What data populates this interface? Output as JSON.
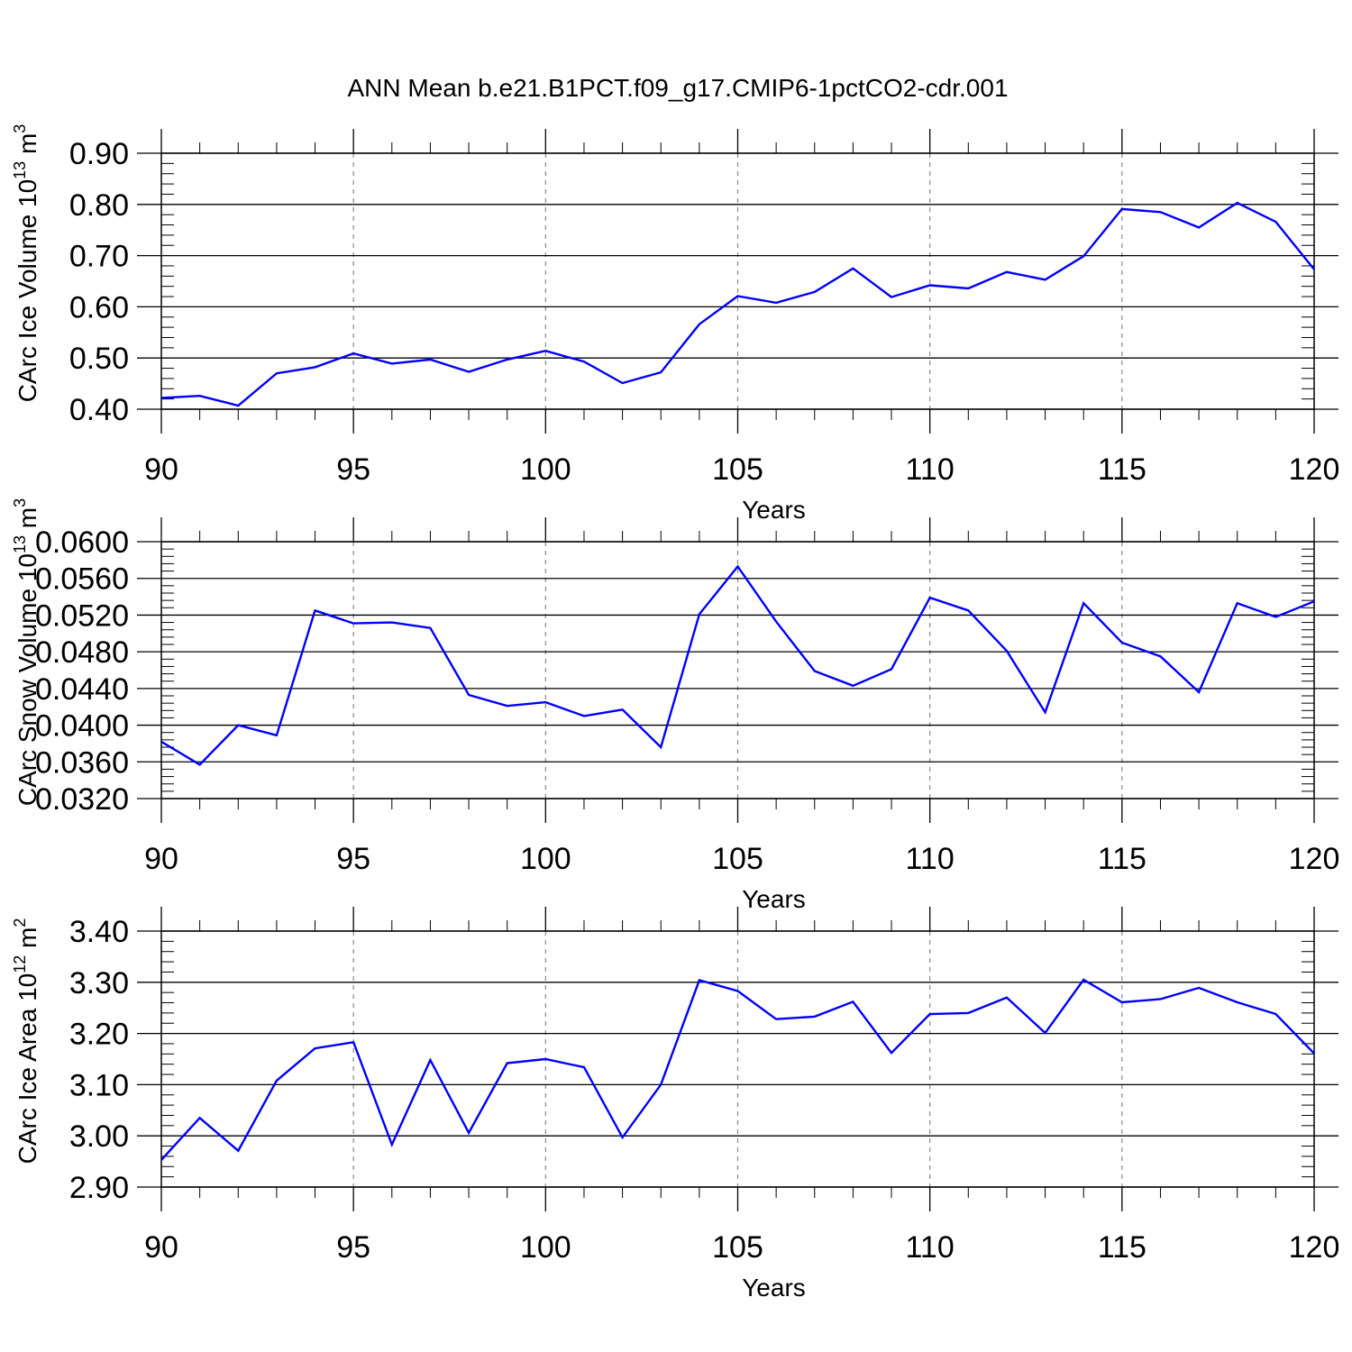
{
  "title": "ANN Mean b.e21.B1PCT.f09_g17.CMIP6-1pctCO2-cdr.001",
  "line_color": "#0000ff",
  "chart_data": [
    {
      "type": "line",
      "ylabel": "CArc Ice Volume 10",
      "ylabel_exp": "13",
      "ylabel_unit": " m",
      "ylabel_unit_exp": "3",
      "xlabel": "Years",
      "xlim": [
        90,
        120
      ],
      "ylim": [
        0.4,
        0.9
      ],
      "xticks": [
        "90",
        "95",
        "100",
        "105",
        "110",
        "115",
        "120"
      ],
      "yticks": [
        "0.40",
        "0.50",
        "0.60",
        "0.70",
        "0.80",
        "0.90"
      ],
      "grid": "vertical dashed",
      "x": [
        90,
        91,
        92,
        93,
        94,
        95,
        96,
        97,
        98,
        99,
        100,
        101,
        102,
        103,
        104,
        105,
        106,
        107,
        108,
        109,
        110,
        111,
        112,
        113,
        114,
        115,
        116,
        117,
        118,
        119,
        120
      ],
      "y": [
        0.422,
        0.426,
        0.407,
        0.47,
        0.482,
        0.509,
        0.489,
        0.497,
        0.473,
        0.497,
        0.514,
        0.493,
        0.451,
        0.472,
        0.566,
        0.621,
        0.608,
        0.629,
        0.675,
        0.619,
        0.642,
        0.636,
        0.668,
        0.653,
        0.699,
        0.791,
        0.785,
        0.755,
        0.803,
        0.766,
        0.673
      ]
    },
    {
      "type": "line",
      "ylabel": "CArc Snow Volume 10",
      "ylabel_exp": "13",
      "ylabel_unit": " m",
      "ylabel_unit_exp": "3",
      "xlabel": "Years",
      "xlim": [
        90,
        120
      ],
      "ylim": [
        0.032,
        0.06
      ],
      "xticks": [
        "90",
        "95",
        "100",
        "105",
        "110",
        "115",
        "120"
      ],
      "yticks": [
        "0.0320",
        "0.0360",
        "0.0400",
        "0.0440",
        "0.0480",
        "0.0520",
        "0.0560",
        "0.0600"
      ],
      "grid": "vertical dashed",
      "x": [
        90,
        91,
        92,
        93,
        94,
        95,
        96,
        97,
        98,
        99,
        100,
        101,
        102,
        103,
        104,
        105,
        106,
        107,
        108,
        109,
        110,
        111,
        112,
        113,
        114,
        115,
        116,
        117,
        118,
        119,
        120
      ],
      "y": [
        0.0382,
        0.0357,
        0.04,
        0.0389,
        0.0525,
        0.0511,
        0.0512,
        0.0506,
        0.0433,
        0.0421,
        0.0425,
        0.041,
        0.0417,
        0.0376,
        0.0521,
        0.0573,
        0.0513,
        0.0459,
        0.0443,
        0.0461,
        0.0539,
        0.0525,
        0.0481,
        0.0414,
        0.0533,
        0.049,
        0.0475,
        0.0436,
        0.0533,
        0.0518,
        0.0535
      ]
    },
    {
      "type": "line",
      "ylabel": "CArc Ice Area 10",
      "ylabel_exp": "12",
      "ylabel_unit": " m",
      "ylabel_unit_exp": "2",
      "xlabel": "Years",
      "xlim": [
        90,
        120
      ],
      "ylim": [
        2.9,
        3.4
      ],
      "xticks": [
        "90",
        "95",
        "100",
        "105",
        "110",
        "115",
        "120"
      ],
      "yticks": [
        "2.90",
        "3.00",
        "3.10",
        "3.20",
        "3.30",
        "3.40"
      ],
      "grid": "vertical dashed",
      "x": [
        90,
        91,
        92,
        93,
        94,
        95,
        96,
        97,
        98,
        99,
        100,
        101,
        102,
        103,
        104,
        105,
        106,
        107,
        108,
        109,
        110,
        111,
        112,
        113,
        114,
        115,
        116,
        117,
        118,
        119,
        120
      ],
      "y": [
        2.953,
        3.035,
        2.971,
        3.108,
        3.171,
        3.183,
        2.983,
        3.148,
        3.006,
        3.142,
        3.15,
        3.134,
        2.997,
        3.1,
        3.304,
        3.283,
        3.228,
        3.233,
        3.262,
        3.162,
        3.238,
        3.24,
        3.27,
        3.201,
        3.305,
        3.261,
        3.267,
        3.289,
        3.261,
        3.238,
        3.161
      ]
    }
  ]
}
